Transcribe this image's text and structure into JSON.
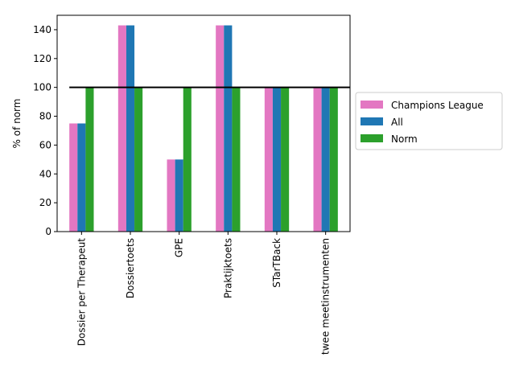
{
  "chart_data": {
    "type": "bar",
    "title": "",
    "xlabel": "",
    "ylabel": "% of norm",
    "ylim": [
      0,
      150
    ],
    "yticks": [
      0,
      20,
      40,
      60,
      80,
      100,
      120,
      140
    ],
    "categories": [
      "Dossier per Therapeut",
      "Dossiertoets",
      "GPE",
      "Praktijktoets",
      "STarTBack",
      "twee meetinstrumenten"
    ],
    "series": [
      {
        "name": "Champions League",
        "color": "#e377c2",
        "values": [
          75,
          143,
          50,
          143,
          100,
          100
        ]
      },
      {
        "name": "All",
        "color": "#1f77b4",
        "values": [
          75,
          143,
          50,
          143,
          100,
          100
        ]
      },
      {
        "name": "Norm",
        "color": "#2ca02c",
        "values": [
          100,
          100,
          100,
          100,
          100,
          100
        ]
      }
    ],
    "reference_line": {
      "y": 100,
      "color": "#000000"
    },
    "grid": false,
    "legend_placement": "outside-right"
  }
}
